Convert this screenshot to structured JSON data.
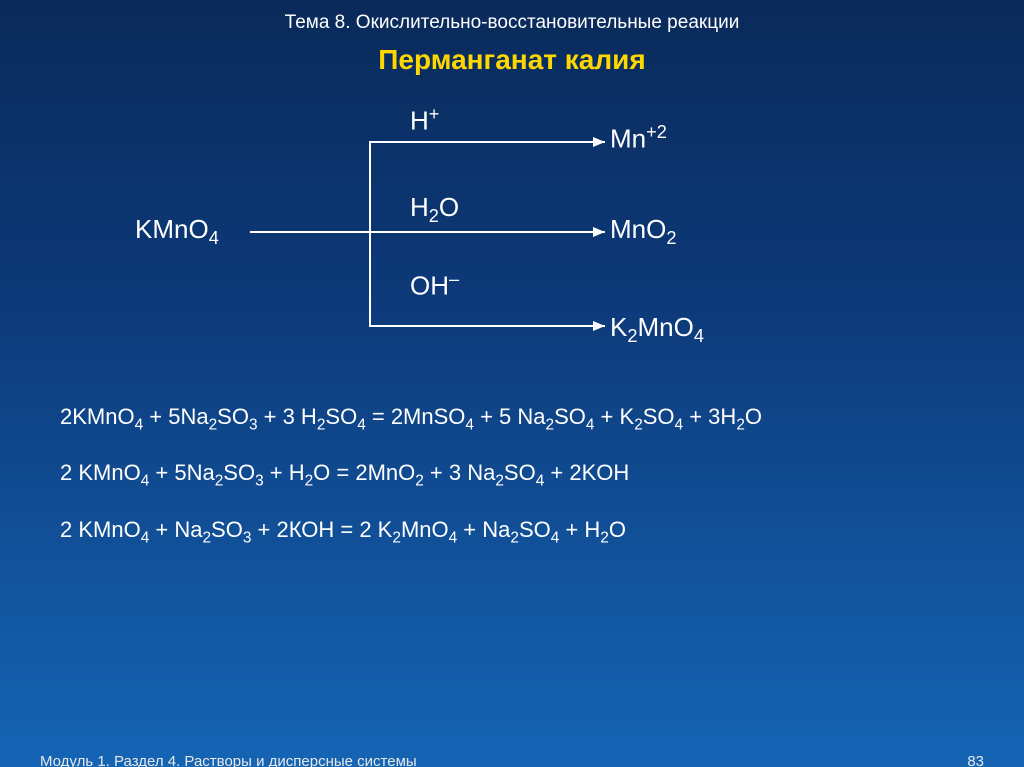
{
  "topic": "Тема 8. Окислительно-восстановительные реакции",
  "title": "Перманганат калия",
  "title_color": "#ffd700",
  "diagram": {
    "reagent": "KMnO4",
    "conditions": [
      "H+",
      "H2O",
      "OH–"
    ],
    "products": [
      "Mn+2",
      "MnO2",
      "K2MnO4"
    ],
    "arrow_color": "#ffffff",
    "arrow_width": 2
  },
  "equations": [
    "2KMnO4 + 5Na2SO3 + 3 H2SO4 = 2MnSO4 + 5 Na2SO4 + K2SO4 + 3H2O",
    "2 KMnO4 +   5Na2SO3 +  H2O =   2MnO2 +  3 Na2SO4 + 2KOH",
    "2 KMnO4 +   Na2SO3 +  2КОН =   2 K2MnO4 +   Na2SO4 + H2O"
  ],
  "footer": {
    "left": "Модуль 1. Раздел 4. Растворы и дисперсные системы",
    "page": "83"
  },
  "colors": {
    "bg_top": "#0a2a5a",
    "bg_mid": "#0d3a7a",
    "bg_bottom": "#1565b5",
    "text": "#ffffff"
  },
  "fontsize": {
    "topic": 19,
    "title": 28,
    "formula": 26,
    "equation": 22,
    "footer": 15
  }
}
